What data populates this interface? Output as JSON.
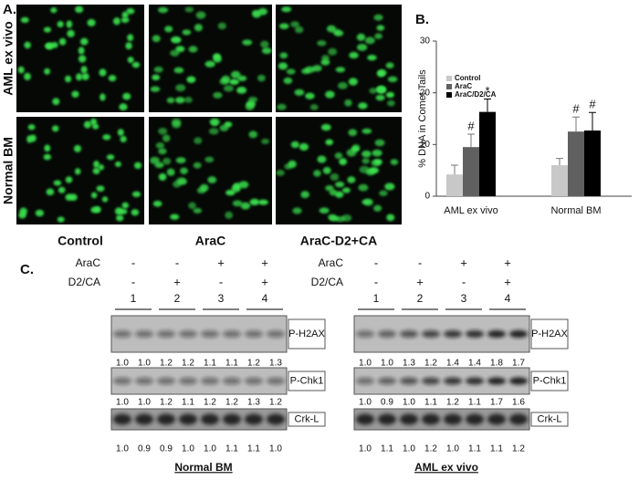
{
  "panel_a": {
    "label": "A.",
    "rows": [
      "AML ex vivo",
      "Normal BM"
    ],
    "columns": [
      "Control",
      "AraC",
      "AraC-D2+CA"
    ]
  },
  "chart_data": {
    "type": "bar",
    "panel_label": "B.",
    "y_label": "% DNA in Comet Tails",
    "categories": [
      "AML ex vivo",
      "Normal BM"
    ],
    "series": [
      {
        "name": "Control",
        "color": "#c8c8c8",
        "values": [
          4.2,
          6
        ],
        "errors": [
          1.8,
          1.3
        ],
        "markers": [
          null,
          null
        ]
      },
      {
        "name": "AraC",
        "color": "#606060",
        "values": [
          9.5,
          12.5
        ],
        "errors": [
          2.5,
          2.8
        ],
        "markers": [
          "#",
          "#"
        ]
      },
      {
        "name": "AraC/D2/CA",
        "color": "#000000",
        "values": [
          16.3,
          12.7
        ],
        "errors": [
          2.5,
          3.5
        ],
        "markers": [
          "*",
          "#"
        ]
      }
    ],
    "ylim": [
      0,
      30
    ],
    "yticks": [
      0,
      10,
      20,
      30
    ],
    "legend": "upper-left"
  },
  "panel_c": {
    "label": "C.",
    "blots": [
      {
        "title": "Normal BM",
        "treatments": [
          {
            "name": "AraC",
            "signs": [
              "-",
              "-",
              "+",
              "+"
            ]
          },
          {
            "name": "D2/CA",
            "signs": [
              "-",
              "+",
              "-",
              "+"
            ]
          }
        ],
        "lanes": [
          "1",
          "2",
          "3",
          "4"
        ],
        "rows": [
          {
            "protein": "P-H2AX",
            "quant": [
              "1.0",
              "1.0",
              "1.2",
              "1.2",
              "1.1",
              "1.1",
              "1.2",
              "1.3"
            ]
          },
          {
            "protein": "P-Chk1",
            "quant": [
              "1.0",
              "1.0",
              "1.2",
              "1.1",
              "1.2",
              "1.2",
              "1.3",
              "1.2"
            ]
          },
          {
            "protein": "Crk-L",
            "quant": [
              "1.0",
              "0.9",
              "0.9",
              "1.0",
              "1.0",
              "1.1",
              "1.1",
              "1.0"
            ]
          }
        ]
      },
      {
        "title": "AML ex vivo",
        "treatments": [
          {
            "name": "AraC",
            "signs": [
              "-",
              "-",
              "+",
              "+"
            ]
          },
          {
            "name": "D2/CA",
            "signs": [
              "-",
              "+",
              "-",
              "+"
            ]
          }
        ],
        "lanes": [
          "1",
          "2",
          "3",
          "4"
        ],
        "rows": [
          {
            "protein": "P-H2AX",
            "quant": [
              "1.0",
              "1.0",
              "1.3",
              "1.2",
              "1.4",
              "1.4",
              "1.8",
              "1.7"
            ]
          },
          {
            "protein": "P-Chk1",
            "quant": [
              "1.0",
              "0.9",
              "1.0",
              "1.1",
              "1.2",
              "1.1",
              "1.7",
              "1.6"
            ]
          },
          {
            "protein": "Crk-L",
            "quant": [
              "1.0",
              "1.1",
              "1.0",
              "1.2",
              "1.0",
              "1.1",
              "1.1",
              "1.2"
            ]
          }
        ]
      }
    ]
  }
}
